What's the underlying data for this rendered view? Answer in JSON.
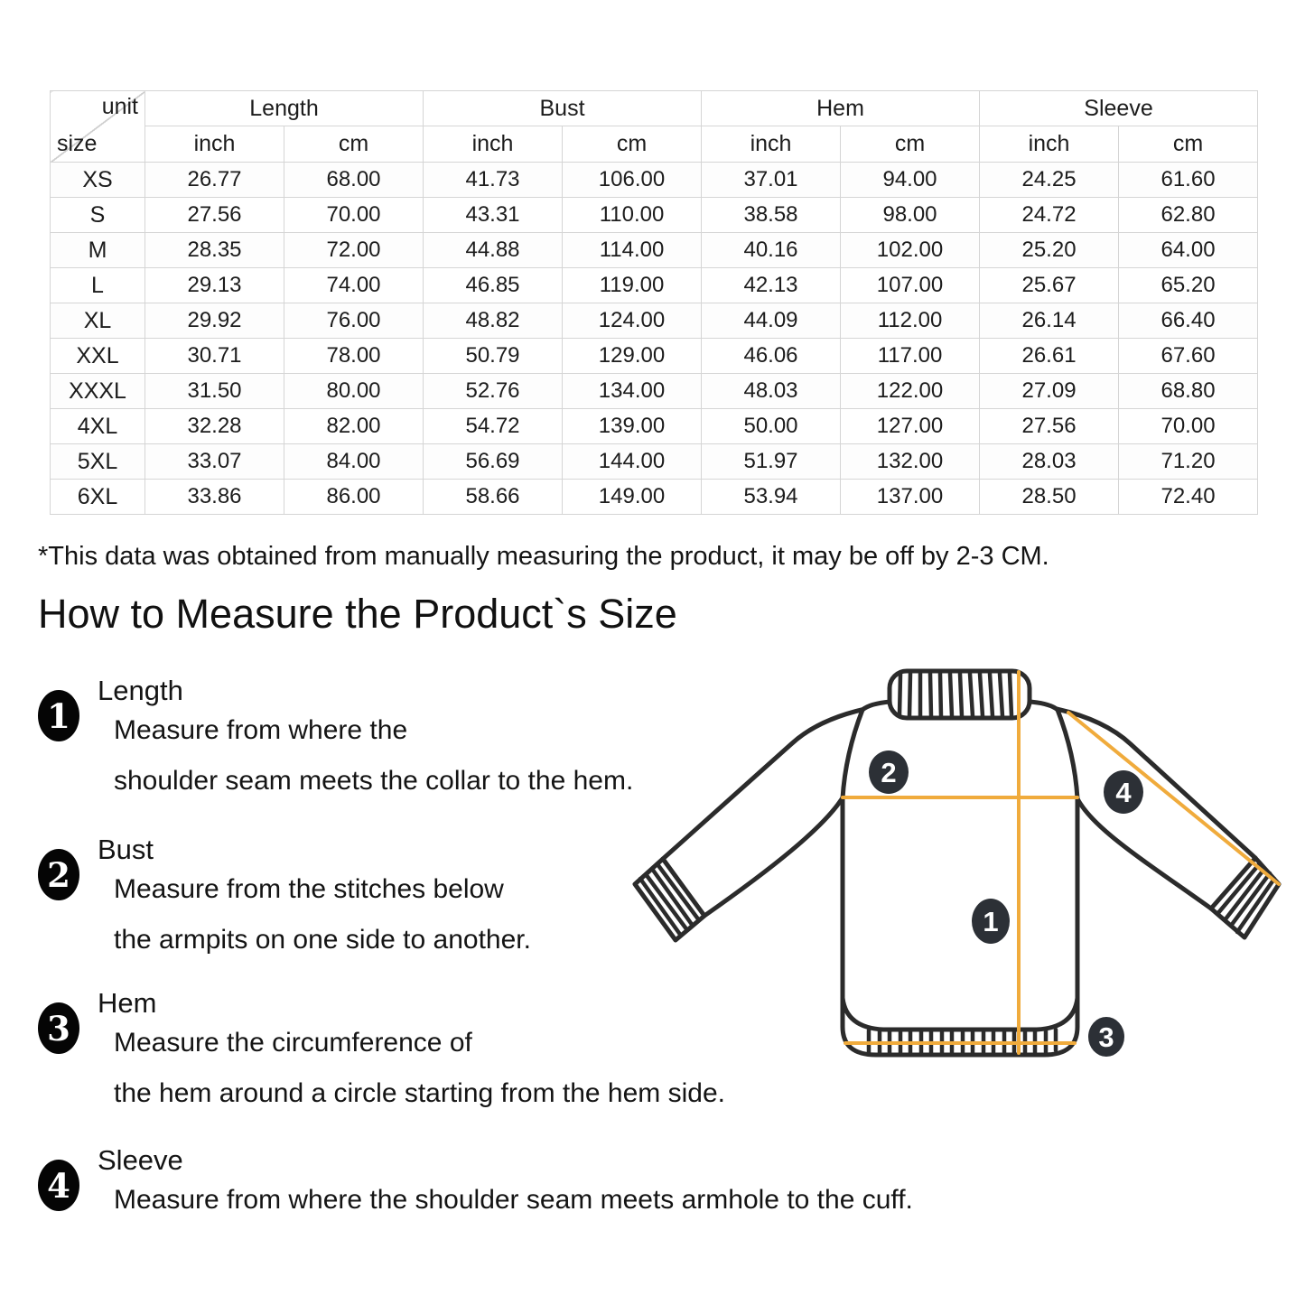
{
  "size_chart": {
    "corner": {
      "top_label": "unit",
      "bottom_label": "size"
    },
    "measure_groups": [
      "Length",
      "Bust",
      "Hem",
      "Sleeve"
    ],
    "unit_headers": [
      "inch",
      "cm",
      "inch",
      "cm",
      "inch",
      "cm",
      "inch",
      "cm"
    ],
    "rows": [
      {
        "size": "XS",
        "values": [
          "26.77",
          "68.00",
          "41.73",
          "106.00",
          "37.01",
          "94.00",
          "24.25",
          "61.60"
        ]
      },
      {
        "size": "S",
        "values": [
          "27.56",
          "70.00",
          "43.31",
          "110.00",
          "38.58",
          "98.00",
          "24.72",
          "62.80"
        ]
      },
      {
        "size": "M",
        "values": [
          "28.35",
          "72.00",
          "44.88",
          "114.00",
          "40.16",
          "102.00",
          "25.20",
          "64.00"
        ]
      },
      {
        "size": "L",
        "values": [
          "29.13",
          "74.00",
          "46.85",
          "119.00",
          "42.13",
          "107.00",
          "25.67",
          "65.20"
        ]
      },
      {
        "size": "XL",
        "values": [
          "29.92",
          "76.00",
          "48.82",
          "124.00",
          "44.09",
          "112.00",
          "26.14",
          "66.40"
        ]
      },
      {
        "size": "XXL",
        "values": [
          "30.71",
          "78.00",
          "50.79",
          "129.00",
          "46.06",
          "117.00",
          "26.61",
          "67.60"
        ]
      },
      {
        "size": "XXXL",
        "values": [
          "31.50",
          "80.00",
          "52.76",
          "134.00",
          "48.03",
          "122.00",
          "27.09",
          "68.80"
        ]
      },
      {
        "size": "4XL",
        "values": [
          "32.28",
          "82.00",
          "54.72",
          "139.00",
          "50.00",
          "127.00",
          "27.56",
          "70.00"
        ]
      },
      {
        "size": "5XL",
        "values": [
          "33.07",
          "84.00",
          "56.69",
          "144.00",
          "51.97",
          "132.00",
          "28.03",
          "71.20"
        ]
      },
      {
        "size": "6XL",
        "values": [
          "33.86",
          "86.00",
          "58.66",
          "149.00",
          "53.94",
          "137.00",
          "28.50",
          "72.40"
        ]
      }
    ]
  },
  "note": "*This data was obtained from manually measuring the product, it may be off by 2-3 CM.",
  "guide": {
    "heading": "How to Measure the Product`s Size",
    "steps": [
      {
        "num": "1",
        "title": "Length",
        "lines": [
          "Measure from where the",
          "shoulder seam meets the collar to the hem."
        ]
      },
      {
        "num": "2",
        "title": "Bust",
        "lines": [
          "Measure from the stitches below",
          "the armpits on one side to another."
        ]
      },
      {
        "num": "3",
        "title": "Hem",
        "lines": [
          "Measure the circumference of",
          "the hem around a circle starting from the hem side."
        ]
      },
      {
        "num": "4",
        "title": "Sleeve",
        "lines": [
          "Measure from where the shoulder seam meets armhole to the cuff."
        ]
      }
    ]
  },
  "diagram": {
    "badges": [
      {
        "num": "1"
      },
      {
        "num": "2"
      },
      {
        "num": "3"
      },
      {
        "num": "4"
      }
    ],
    "colors": {
      "outline": "#2b2b2b",
      "measure_line": "#f0ab3c",
      "badge_bg": "#2c3036",
      "badge_text": "#ffffff"
    }
  }
}
